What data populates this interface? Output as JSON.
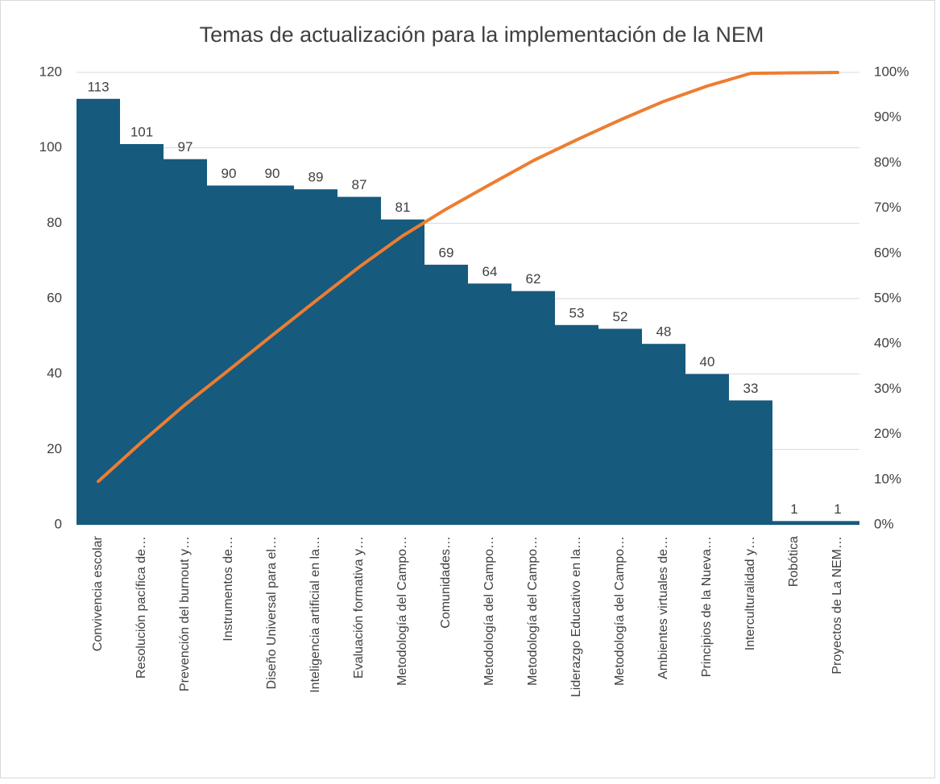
{
  "chart_data": {
    "type": "pareto",
    "title": "Temas de actualización para la implementación de la NEM",
    "categories": [
      "Convivencia escolar",
      "Resolución pacífica de…",
      "Prevención del burnout y…",
      "Instrumentos de…",
      "Diseño Universal para el…",
      "Inteligencia artificial en la…",
      "Evaluación formativa y…",
      "Metodología del Campo…",
      "Comunidades…",
      "Metodología del Campo…",
      "Metodología del Campo…",
      "Liderazgo Educativo en la…",
      "Metodología del Campo…",
      "Ambientes virtuales de…",
      "Principios de la Nueva…",
      "Interculturalidad y…",
      "Robótica",
      "Proyectos de La NEM…"
    ],
    "series": [
      {
        "color": "#165a7e",
        "values": [
          113,
          101,
          97,
          90,
          90,
          89,
          87,
          81,
          69,
          64,
          62,
          53,
          52,
          48,
          40,
          33,
          1,
          1
        ]
      },
      {
        "color": "#ed7d31",
        "axis": "y2",
        "values": [
          9.6,
          18.3,
          26.6,
          34.2,
          41.9,
          49.5,
          57.0,
          63.9,
          69.8,
          75.2,
          80.5,
          85.1,
          89.5,
          93.6,
          97.0,
          99.8,
          99.9,
          100
        ]
      }
    ],
    "ylim": [
      0,
      120
    ],
    "yticks": [
      0,
      20,
      40,
      60,
      80,
      100,
      120
    ],
    "y2lim": [
      0,
      100
    ],
    "y2ticks": [
      {
        "value": 0,
        "label": "0%"
      },
      {
        "value": 10,
        "label": "10%"
      },
      {
        "value": 20,
        "label": "20%"
      },
      {
        "value": 30,
        "label": "30%"
      },
      {
        "value": 40,
        "label": "40%"
      },
      {
        "value": 50,
        "label": "50%"
      },
      {
        "value": 60,
        "label": "60%"
      },
      {
        "value": 70,
        "label": "70%"
      },
      {
        "value": 80,
        "label": "80%"
      },
      {
        "value": 90,
        "label": "90%"
      },
      {
        "value": 100,
        "label": "100%"
      }
    ],
    "grid": true
  }
}
